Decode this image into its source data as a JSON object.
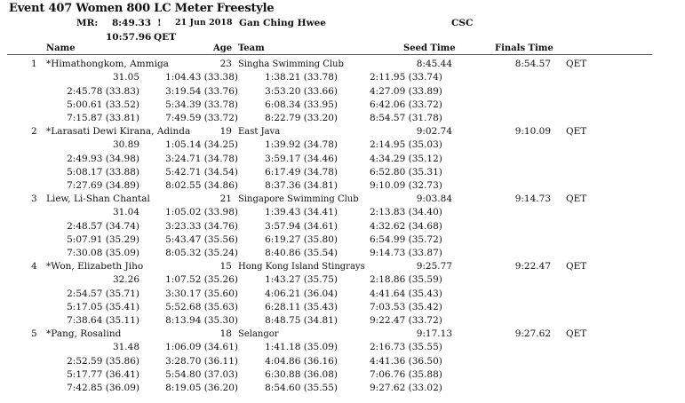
{
  "event": {
    "title": "Event 407  Women 800 LC Meter Freestyle",
    "record": {
      "label": "MR:",
      "time": "8:49.33",
      "flag": "!",
      "date": "21 Jun 2018",
      "holder": "Gan Ching Hwee",
      "team": "CSC"
    },
    "qualifying": {
      "time": "10:57.96",
      "code": "QET"
    }
  },
  "columns": {
    "name": "Name",
    "age": "Age",
    "team": "Team",
    "seed": "Seed Time",
    "finals": "Finals Time"
  },
  "results": [
    {
      "place": "1",
      "name": "*Himathongkom, Ammiga",
      "age": "23",
      "team": "Singha Swimming Club",
      "seed": "8:45.44",
      "finals": "8:54.57",
      "code": "QET",
      "splits": [
        [
          "31.05",
          "1:04.43 (33.38)",
          "1:38.21 (33.78)",
          "2:11.95 (33.74)"
        ],
        [
          "2:45.78 (33.83)",
          "3:19.54 (33.76)",
          "3:53.20 (33.66)",
          "4:27.09 (33.89)"
        ],
        [
          "5:00.61 (33.52)",
          "5:34.39 (33.78)",
          "6:08.34 (33.95)",
          "6:42.06 (33.72)"
        ],
        [
          "7:15.87 (33.81)",
          "7:49.59 (33.72)",
          "8:22.79 (33.20)",
          "8:54.57 (31.78)"
        ]
      ]
    },
    {
      "place": "2",
      "name": "*Larasati Dewi Kirana, Adinda",
      "age": "19",
      "team": "East Java",
      "seed": "9:02.74",
      "finals": "9:10.09",
      "code": "QET",
      "splits": [
        [
          "30.89",
          "1:05.14 (34.25)",
          "1:39.92 (34.78)",
          "2:14.95 (35.03)"
        ],
        [
          "2:49.93 (34.98)",
          "3:24.71 (34.78)",
          "3:59.17 (34.46)",
          "4:34.29 (35.12)"
        ],
        [
          "5:08.17 (33.88)",
          "5:42.71 (34.54)",
          "6:17.49 (34.78)",
          "6:52.80 (35.31)"
        ],
        [
          "7:27.69 (34.89)",
          "8:02.55 (34.86)",
          "8:37.36 (34.81)",
          "9:10.09 (32.73)"
        ]
      ]
    },
    {
      "place": "3",
      "name": "Liew, Li-Shan Chantal",
      "age": "21",
      "team": "Singapore Swimming Club",
      "seed": "9:03.84",
      "finals": "9:14.73",
      "code": "QET",
      "splits": [
        [
          "31.04",
          "1:05.02 (33.98)",
          "1:39.43 (34.41)",
          "2:13.83 (34.40)"
        ],
        [
          "2:48.57 (34.74)",
          "3:23.33 (34.76)",
          "3:57.94 (34.61)",
          "4:32.62 (34.68)"
        ],
        [
          "5:07.91 (35.29)",
          "5:43.47 (35.56)",
          "6:19.27 (35.80)",
          "6:54.99 (35.72)"
        ],
        [
          "7:30.08 (35.09)",
          "8:05.32 (35.24)",
          "8:40.86 (35.54)",
          "9:14.73 (33.87)"
        ]
      ]
    },
    {
      "place": "4",
      "name": "*Won, Elizabeth Jiho",
      "age": "15",
      "team": "Hong Kong Island Stingrays",
      "seed": "9:25.77",
      "finals": "9:22.47",
      "code": "QET",
      "splits": [
        [
          "32.26",
          "1:07.52 (35.26)",
          "1:43.27 (35.75)",
          "2:18.86 (35.59)"
        ],
        [
          "2:54.57 (35.71)",
          "3:30.17 (35.60)",
          "4:06.21 (36.04)",
          "4:41.64 (35.43)"
        ],
        [
          "5:17.05 (35.41)",
          "5:52.68 (35.63)",
          "6:28.11 (35.43)",
          "7:03.53 (35.42)"
        ],
        [
          "7:38.64 (35.11)",
          "8:13.94 (35.30)",
          "8:48.75 (34.81)",
          "9:22.47 (33.72)"
        ]
      ]
    },
    {
      "place": "5",
      "name": "*Pang, Rosalind",
      "age": "18",
      "team": "Selangor",
      "seed": "9:17.13",
      "finals": "9:27.62",
      "code": "QET",
      "splits": [
        [
          "31.48",
          "1:06.09 (34.61)",
          "1:41.18 (35.09)",
          "2:16.73 (35.55)"
        ],
        [
          "2:52.59 (35.86)",
          "3:28.70 (36.11)",
          "4:04.86 (36.16)",
          "4:41.36 (36.50)"
        ],
        [
          "5:17.77 (36.41)",
          "5:54.80 (37.03)",
          "6:30.88 (36.08)",
          "7:06.76 (35.88)"
        ],
        [
          "7:42.85 (36.09)",
          "8:19.05 (36.20)",
          "8:54.60 (35.55)",
          "9:27.62 (33.02)"
        ]
      ]
    }
  ]
}
